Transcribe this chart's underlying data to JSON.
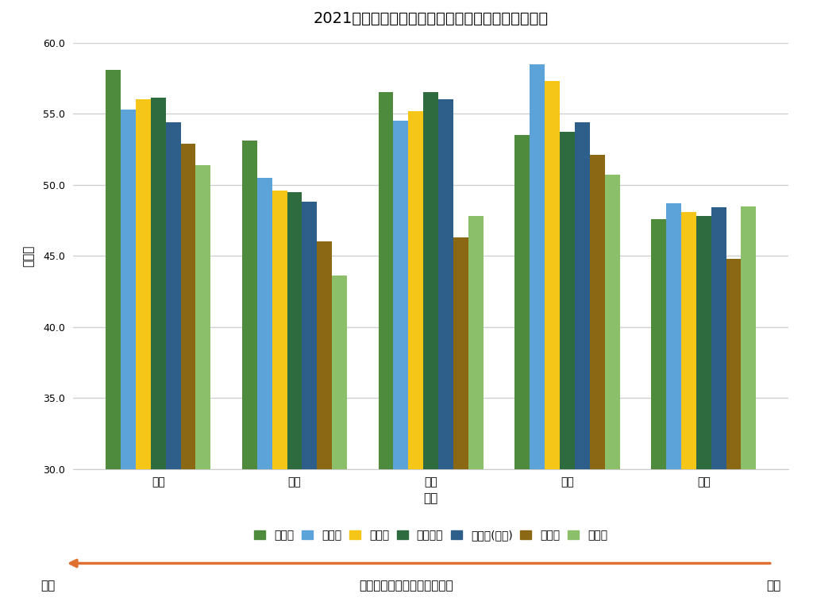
{
  "title": "2021年度　中学３年９月実力テスト　教科別平均点",
  "xlabel": "教科",
  "ylabel": "平均点",
  "categories": [
    "国語",
    "社会",
    "数学",
    "理科",
    "英語"
  ],
  "schools": [
    "布袋中",
    "岩倉中",
    "味岡中",
    "古知野中",
    "東部中(犬山)",
    "小牧中",
    "岩崎中"
  ],
  "colors": [
    "#4e8b3c",
    "#5ba3d9",
    "#f5c518",
    "#2e6b3e",
    "#2e5f8a",
    "#8b6914",
    "#8bbf6a"
  ],
  "data": {
    "布袋中": [
      58.1,
      53.1,
      56.5,
      53.5,
      47.6
    ],
    "岩倉中": [
      55.3,
      50.5,
      54.5,
      58.5,
      48.7
    ],
    "味岡中": [
      56.0,
      49.6,
      55.2,
      57.3,
      48.1
    ],
    "古知野中": [
      56.1,
      49.5,
      56.5,
      53.7,
      47.8
    ],
    "東部中(犬山)": [
      54.4,
      48.8,
      56.0,
      54.4,
      48.4
    ],
    "小牧中": [
      52.9,
      46.0,
      46.3,
      52.1,
      44.8
    ],
    "岩崎中": [
      51.4,
      43.6,
      47.8,
      50.7,
      48.5
    ]
  },
  "ylim": [
    30.0,
    60.0
  ],
  "yticks": [
    30.0,
    35.0,
    40.0,
    45.0,
    50.0,
    55.0,
    60.0
  ],
  "background_color": "#ffffff",
  "arrow_text": "５教科合計の平均点が高い順",
  "arrow_left": "高い",
  "arrow_right": "低い",
  "arrow_color": "#e07030"
}
